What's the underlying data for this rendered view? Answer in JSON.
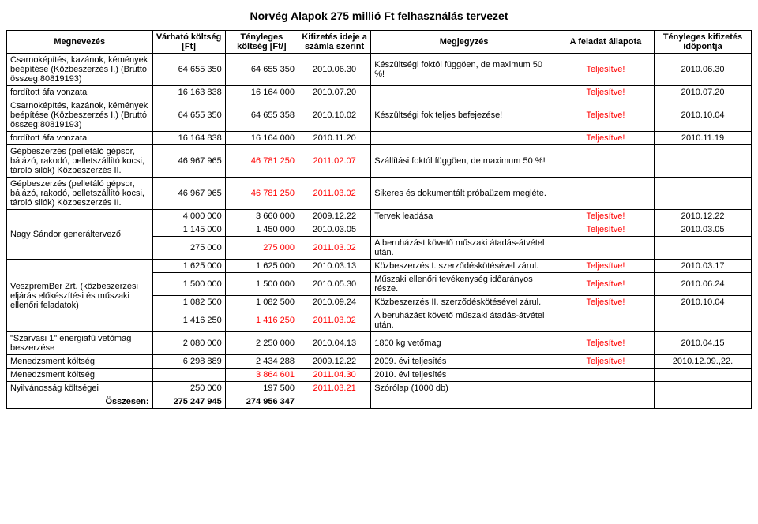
{
  "title": "Norvég Alapok 275 millió Ft felhasználás tervezet",
  "columns": [
    "Megnevezés",
    "Várható költség [Ft]",
    "Tényleges költség [Ft/]",
    "Kifizetés ideje a számla szerint",
    "Megjegyzés",
    "A feladat állapota",
    "Tényleges kifizetés időpontja"
  ],
  "rows": [
    {
      "megnevezes": "Csarnoképítés, kazánok, kémények beépítése (Közbeszerzés I.) (Bruttó összeg:80819193)",
      "varhato": "64 655 350",
      "tenyleges": "64 655 350",
      "kifizetes": "2010.06.30",
      "megjegyzes": "Készültségi foktól függöen, de maximum 50 %!",
      "allapot": "Teljesítve!",
      "tenyleges_idopont": "2010.06.30",
      "red_varhato": false,
      "red_tenyleges": false,
      "red_kifizetes": false,
      "red_allapot": true
    },
    {
      "megnevezes": "fordított áfa vonzata",
      "varhato": "16 163 838",
      "tenyleges": "16 164 000",
      "kifizetes": "2010.07.20",
      "megjegyzes": "",
      "allapot": "Teljesítve!",
      "tenyleges_idopont": "2010.07.20",
      "red_varhato": false,
      "red_tenyleges": false,
      "red_kifizetes": false,
      "red_allapot": true
    },
    {
      "megnevezes": "Csarnoképítés, kazánok, kémények beépítése (Közbeszerzés I.) (Bruttó összeg:80819193)",
      "varhato": "64 655 350",
      "tenyleges": "64 655 358",
      "kifizetes": "2010.10.02",
      "megjegyzes": "Készültségi fok teljes befejezése!",
      "allapot": "Teljesítve!",
      "tenyleges_idopont": "2010.10.04",
      "red_varhato": false,
      "red_tenyleges": false,
      "red_kifizetes": false,
      "red_allapot": true
    },
    {
      "megnevezes": "fordított áfa vonzata",
      "varhato": "16 164 838",
      "tenyleges": "16 164 000",
      "kifizetes": "2010.11.20",
      "megjegyzes": "",
      "allapot": "Teljesítve!",
      "tenyleges_idopont": "2010.11.19",
      "red_varhato": false,
      "red_tenyleges": false,
      "red_kifizetes": false,
      "red_allapot": true
    },
    {
      "megnevezes": "Gépbeszerzés (pelletáló gépsor, bálázó, rakodó, pelletszállító kocsi, tároló silók) Közbeszerzés II.",
      "varhato": "46 967 965",
      "tenyleges": "46 781 250",
      "kifizetes": "2011.02.07",
      "megjegyzes": "Szállítási foktól függöen, de maximum 50 %!",
      "allapot": "",
      "tenyleges_idopont": "",
      "red_varhato": false,
      "red_tenyleges": true,
      "red_kifizetes": true,
      "red_allapot": false
    },
    {
      "megnevezes": "Gépbeszerzés (pelletáló gépsor, bálázó, rakodó, pelletszállító kocsi, tároló silók) Közbeszerzés II.",
      "varhato": "46 967 965",
      "tenyleges": "46 781 250",
      "kifizetes": "2011.03.02",
      "megjegyzes": "Sikeres és dokumentált próbaüzem megléte.",
      "allapot": "",
      "tenyleges_idopont": "",
      "red_varhato": false,
      "red_tenyleges": true,
      "red_kifizetes": true,
      "red_allapot": false
    },
    {
      "megnevezes": "",
      "varhato": "4 000 000",
      "tenyleges": "3 660 000",
      "kifizetes": "2009.12.22",
      "megjegyzes": "Tervek leadása",
      "allapot": "Teljesítve!",
      "tenyleges_idopont": "2010.12.22",
      "red_varhato": false,
      "red_tenyleges": false,
      "red_kifizetes": false,
      "red_allapot": true,
      "group": "nagy"
    },
    {
      "megnevezes": "Nagy Sándor generáltervező",
      "varhato": "1 145 000",
      "tenyleges": "1 450 000",
      "kifizetes": "2010.03.05",
      "megjegyzes": "",
      "allapot": "Teljesítve!",
      "tenyleges_idopont": "2010.03.05",
      "red_varhato": false,
      "red_tenyleges": false,
      "red_kifizetes": false,
      "red_allapot": true,
      "group": "nagy"
    },
    {
      "megnevezes": "",
      "varhato": "275 000",
      "tenyleges": "275 000",
      "kifizetes": "2011.03.02",
      "megjegyzes": "A beruházást követő műszaki átadás-átvétel után.",
      "allapot": "",
      "tenyleges_idopont": "",
      "red_varhato": false,
      "red_tenyleges": true,
      "red_kifizetes": true,
      "red_allapot": false,
      "group": "nagy"
    },
    {
      "megnevezes": "",
      "varhato": "1 625 000",
      "tenyleges": "1 625 000",
      "kifizetes": "2010.03.13",
      "megjegyzes": "Közbeszerzés I. szerződéskötésével zárul.",
      "allapot": "Teljesítve!",
      "tenyleges_idopont": "2010.03.17",
      "red_varhato": false,
      "red_tenyleges": false,
      "red_kifizetes": false,
      "red_allapot": true,
      "group": "veszprem"
    },
    {
      "megnevezes": "VeszprémBer Zrt. (közbeszerzési eljárás előkészítési és műszaki ellenőri feladatok)",
      "varhato": "1 500 000",
      "tenyleges": "1 500 000",
      "kifizetes": "2010.05.30",
      "megjegyzes": "Műszaki ellenőri tevékenység időarányos része.",
      "allapot": "Teljesítve!",
      "tenyleges_idopont": "2010.06.24",
      "red_varhato": false,
      "red_tenyleges": false,
      "red_kifizetes": false,
      "red_allapot": true,
      "group": "veszprem"
    },
    {
      "megnevezes": "",
      "varhato": "1 082 500",
      "tenyleges": "1 082 500",
      "kifizetes": "2010.09.24",
      "megjegyzes": "Közbeszerzés II. szerződéskötésével zárul.",
      "allapot": "Teljesítve!",
      "tenyleges_idopont": "2010.10.04",
      "red_varhato": false,
      "red_tenyleges": false,
      "red_kifizetes": false,
      "red_allapot": true,
      "group": "veszprem"
    },
    {
      "megnevezes": "",
      "varhato": "1 416 250",
      "tenyleges": "1 416 250",
      "kifizetes": "2011.03.02",
      "megjegyzes": "A beruházást követő műszaki átadás-átvétel után.",
      "allapot": "",
      "tenyleges_idopont": "",
      "red_varhato": false,
      "red_tenyleges": true,
      "red_kifizetes": true,
      "red_allapot": false,
      "group": "veszprem"
    },
    {
      "megnevezes": "\"Szarvasi 1\" energiafű vetőmag beszerzése",
      "varhato": "2 080 000",
      "tenyleges": "2 250 000",
      "kifizetes": "2010.04.13",
      "megjegyzes": "1800 kg vetőmag",
      "allapot": "Teljesítve!",
      "tenyleges_idopont": "2010.04.15",
      "red_varhato": false,
      "red_tenyleges": false,
      "red_kifizetes": false,
      "red_allapot": true
    },
    {
      "megnevezes": "Menedzsment költség",
      "varhato": "6 298 889",
      "tenyleges": "2 434 288",
      "kifizetes": "2009.12.22",
      "megjegyzes": "2009. évi teljesítés",
      "allapot": "Teljesítve!",
      "tenyleges_idopont": "2010.12.09.,22.",
      "red_varhato": false,
      "red_tenyleges": false,
      "red_kifizetes": false,
      "red_allapot": true
    },
    {
      "megnevezes": "Menedzsment költség",
      "varhato": "",
      "tenyleges": "3 864 601",
      "kifizetes": "2011.04.30",
      "megjegyzes": "2010. évi teljesítés",
      "allapot": "",
      "tenyleges_idopont": "",
      "red_varhato": false,
      "red_tenyleges": true,
      "red_kifizetes": true,
      "red_allapot": false
    },
    {
      "megnevezes": "Nyilvánosság költségei",
      "varhato": "250 000",
      "tenyleges": "197 500",
      "kifizetes": "2011.03.21",
      "megjegyzes": "Szórólap (1000 db)",
      "allapot": "",
      "tenyleges_idopont": "",
      "red_varhato": false,
      "red_tenyleges": false,
      "red_kifizetes": true,
      "red_allapot": false
    }
  ],
  "footer": {
    "label": "Összesen:",
    "varhato": "275 247 945",
    "tenyleges": "274 956 347"
  }
}
